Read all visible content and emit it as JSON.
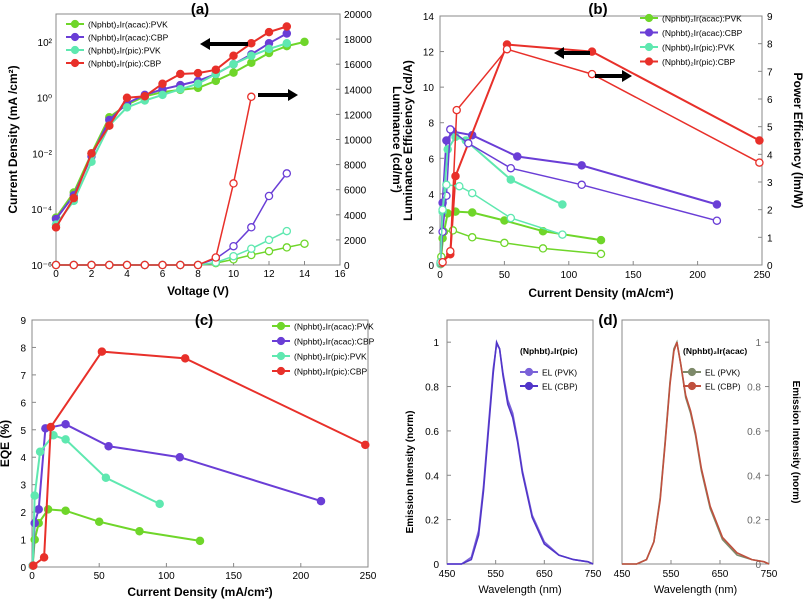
{
  "chart_data": [
    {
      "id": "a",
      "panel_label": "(a)",
      "type": "line",
      "xlabel": "Voltage (V)",
      "ylabel": "Current Density (mA /cm²)",
      "y2label": "Luminance (cd/m²)",
      "xlim": [
        0,
        16
      ],
      "ylim_log10": [
        -6,
        3
      ],
      "y2lim": [
        0,
        20000
      ],
      "x_ticks": [
        "0",
        "2",
        "4",
        "6",
        "8",
        "10",
        "12",
        "14",
        "16"
      ],
      "y_ticks": [
        "10⁻⁶",
        "10⁻⁴",
        "10⁻²",
        "10⁰",
        "10²"
      ],
      "y2_ticks": [
        "0",
        "2000",
        "4000",
        "6000",
        "8000",
        "10000",
        "12000",
        "14000",
        "16000",
        "18000",
        "20000"
      ],
      "legend": [
        "(Nphbt)₂Ir(acac):PVK",
        "(Nphbt)₂Ir(acac):CBP",
        "(Nphbt)₂Ir(pic):PVK",
        "(Nphbt)₂Ir(pic):CBP"
      ],
      "series_current_density_log10": [
        {
          "name": "(Nphbt)₂Ir(acac):PVK",
          "color": "#6fd62a",
          "x": [
            0,
            1,
            2,
            3,
            4,
            5,
            6,
            7,
            8,
            9,
            10,
            11,
            12,
            13,
            14
          ],
          "y": [
            -4.3,
            -3.4,
            -2.0,
            -0.7,
            -0.25,
            0.05,
            0.2,
            0.28,
            0.35,
            0.6,
            0.9,
            1.25,
            1.6,
            1.85,
            2.0
          ]
        },
        {
          "name": "(Nphbt)₂Ir(acac):CBP",
          "color": "#6a3ed6",
          "x": [
            0,
            1,
            2,
            3,
            4,
            5,
            6,
            7,
            8,
            9,
            10,
            11,
            12,
            13
          ],
          "y": [
            -4.35,
            -3.5,
            -2.1,
            -0.8,
            -0.2,
            0.1,
            0.3,
            0.45,
            0.6,
            0.85,
            1.2,
            1.55,
            1.95,
            2.3
          ]
        },
        {
          "name": "(Nphbt)₂Ir(pic):PVK",
          "color": "#5fe8b0",
          "x": [
            0,
            1,
            2,
            3,
            4,
            5,
            6,
            7,
            8,
            9,
            10,
            11,
            12,
            13
          ],
          "y": [
            -4.55,
            -3.7,
            -2.3,
            -1.0,
            -0.35,
            -0.1,
            0.1,
            0.3,
            0.5,
            0.85,
            1.2,
            1.5,
            1.75,
            1.95
          ]
        },
        {
          "name": "(Nphbt)₂Ir(pic):CBP",
          "color": "#e8302a",
          "x": [
            0,
            1,
            2,
            3,
            4,
            5,
            6,
            7,
            8,
            9,
            10,
            11,
            12,
            13
          ],
          "y": [
            -4.65,
            -3.6,
            -2.0,
            -1.0,
            0.0,
            0.05,
            0.5,
            0.85,
            0.88,
            1.0,
            1.5,
            1.95,
            2.35,
            2.55
          ]
        }
      ],
      "series_luminance": [
        {
          "name": "(Nphbt)₂Ir(acac):PVK",
          "color": "#6fd62a",
          "x": [
            0,
            1,
            2,
            3,
            4,
            5,
            6,
            7,
            8,
            9,
            10,
            11,
            12,
            13,
            14
          ],
          "y": [
            0,
            0,
            0,
            0,
            0,
            0,
            0,
            0,
            0,
            150,
            450,
            800,
            1100,
            1400,
            1700
          ]
        },
        {
          "name": "(Nphbt)₂Ir(acac):CBP",
          "color": "#6a3ed6",
          "x": [
            0,
            1,
            2,
            3,
            4,
            5,
            6,
            7,
            8,
            9,
            10,
            11,
            12,
            13
          ],
          "y": [
            0,
            0,
            0,
            0,
            0,
            0,
            0,
            0,
            0,
            500,
            1500,
            3000,
            5500,
            7300
          ]
        },
        {
          "name": "(Nphbt)₂Ir(pic):PVK",
          "color": "#5fe8b0",
          "x": [
            0,
            1,
            2,
            3,
            4,
            5,
            6,
            7,
            8,
            9,
            10,
            11,
            12,
            13
          ],
          "y": [
            0,
            0,
            0,
            0,
            0,
            0,
            0,
            0,
            0,
            200,
            700,
            1300,
            2000,
            2700
          ]
        },
        {
          "name": "(Nphbt)₂Ir(pic):CBP",
          "color": "#e8302a",
          "x": [
            0,
            1,
            2,
            3,
            4,
            5,
            6,
            7,
            8,
            9,
            10,
            11
          ],
          "y": [
            0,
            0,
            0,
            0,
            0,
            0,
            0,
            0,
            0,
            600,
            6500,
            13400
          ]
        }
      ]
    },
    {
      "id": "b",
      "panel_label": "(b)",
      "type": "line",
      "xlabel": "Current Density (mA/cm²)",
      "ylabel": "Luminance Efficiency (cd/A)",
      "y2label": "Power Efficiency (lm/W)",
      "xlim": [
        0,
        250
      ],
      "ylim": [
        0,
        14
      ],
      "y2lim": [
        0,
        9
      ],
      "x_ticks": [
        "0",
        "50",
        "100",
        "150",
        "200",
        "250"
      ],
      "y_ticks": [
        "0",
        "2",
        "4",
        "6",
        "8",
        "10",
        "12",
        "14"
      ],
      "y2_ticks": [
        "0",
        "1",
        "2",
        "3",
        "4",
        "5",
        "6",
        "7",
        "8",
        "9"
      ],
      "legend": [
        "(Nphbt)₂Ir(acac):PVK",
        "(Nphbt)₂Ir(acac):CBP",
        "(Nphbt)₂Ir(pic):PVK",
        "(Nphbt)₂Ir(pic):CBP"
      ],
      "series_luminance_efficiency": [
        {
          "name": "(Nphbt)₂Ir(acac):PVK",
          "color": "#6fd62a",
          "x": [
            0.5,
            2,
            6,
            12,
            25,
            50,
            80,
            125
          ],
          "y": [
            0.05,
            1.5,
            2.9,
            3.0,
            2.95,
            2.5,
            1.9,
            1.4
          ]
        },
        {
          "name": "(Nphbt)₂Ir(acac):CBP",
          "color": "#6a3ed6",
          "x": [
            0.5,
            2,
            5,
            10,
            25,
            60,
            110,
            215
          ],
          "y": [
            0.1,
            3.5,
            7.0,
            7.5,
            7.3,
            6.1,
            5.6,
            3.4
          ]
        },
        {
          "name": "(Nphbt)₂Ir(pic):PVK",
          "color": "#5fe8b0",
          "x": [
            0.5,
            2,
            6,
            12,
            20,
            55,
            95
          ],
          "y": [
            0.05,
            3.0,
            6.5,
            7.2,
            7.0,
            4.8,
            3.4
          ]
        },
        {
          "name": "(Nphbt)₂Ir(pic):CBP",
          "color": "#e8302a",
          "x": [
            1,
            8,
            12,
            52,
            118,
            248
          ],
          "y": [
            0.1,
            0.6,
            5.0,
            12.4,
            12.0,
            7.0
          ]
        }
      ],
      "series_power_efficiency": [
        {
          "name": "(Nphbt)₂Ir(acac):PVK",
          "color": "#6fd62a",
          "x": [
            1,
            3,
            10,
            25,
            50,
            80,
            125
          ],
          "y": [
            0.3,
            1.2,
            1.25,
            1.0,
            0.8,
            0.6,
            0.4
          ]
        },
        {
          "name": "(Nphbt)₂Ir(acac):CBP",
          "color": "#6a3ed6",
          "x": [
            0.5,
            2,
            5,
            8,
            22,
            55,
            110,
            215
          ],
          "y": [
            0.1,
            1.2,
            2.5,
            4.9,
            4.4,
            3.5,
            2.9,
            1.6
          ]
        },
        {
          "name": "(Nphbt)₂Ir(pic):PVK",
          "color": "#5fe8b0",
          "x": [
            0.5,
            2,
            5,
            15,
            25,
            55,
            95
          ],
          "y": [
            0.1,
            2.0,
            2.9,
            2.85,
            2.6,
            1.7,
            1.1
          ]
        },
        {
          "name": "(Nphbt)₂Ir(pic):CBP",
          "color": "#e8302a",
          "x": [
            2,
            8,
            13,
            52,
            118,
            248
          ],
          "y": [
            0.1,
            0.5,
            5.6,
            7.8,
            6.9,
            3.7
          ]
        }
      ]
    },
    {
      "id": "c",
      "panel_label": "(c)",
      "type": "line",
      "xlabel": "Current Density (mA/cm²)",
      "ylabel": "EQE (%)",
      "xlim": [
        0,
        250
      ],
      "ylim": [
        0,
        9
      ],
      "x_ticks": [
        "0",
        "50",
        "100",
        "150",
        "200",
        "250"
      ],
      "y_ticks": [
        "0",
        "1",
        "2",
        "3",
        "4",
        "5",
        "6",
        "7",
        "8",
        "9"
      ],
      "legend": [
        "(Nphbt)₂Ir(acac):PVK",
        "(Nphbt)₂Ir(acac):CBP",
        "(Nphbt)₂Ir(pic):PVK",
        "(Nphbt)₂Ir(pic):CBP"
      ],
      "series": [
        {
          "name": "(Nphbt)₂Ir(acac):PVK",
          "color": "#6fd62a",
          "x": [
            0.5,
            2,
            5,
            12,
            25,
            50,
            80,
            125
          ],
          "y": [
            0.05,
            1.0,
            1.6,
            2.1,
            2.05,
            1.65,
            1.3,
            0.95
          ]
        },
        {
          "name": "(Nphbt)₂Ir(acac):CBP",
          "color": "#6a3ed6",
          "x": [
            0.5,
            2,
            5,
            10,
            25,
            57,
            110,
            215
          ],
          "y": [
            0.05,
            1.6,
            2.1,
            5.05,
            5.2,
            4.4,
            4.0,
            2.4
          ]
        },
        {
          "name": "(Nphbt)₂Ir(pic):PVK",
          "color": "#5fe8b0",
          "x": [
            0.5,
            2,
            6,
            16,
            25,
            55,
            95
          ],
          "y": [
            0.05,
            2.6,
            4.2,
            4.8,
            4.65,
            3.25,
            2.3
          ]
        },
        {
          "name": "(Nphbt)₂Ir(pic):CBP",
          "color": "#e8302a",
          "x": [
            1,
            9,
            14,
            52,
            114,
            248
          ],
          "y": [
            0.05,
            0.35,
            5.1,
            7.85,
            7.6,
            4.45
          ]
        }
      ]
    },
    {
      "id": "d1",
      "panel_label": "(d)",
      "type": "line",
      "compound": "(Nphbt)₂Ir(pic)",
      "xlabel": "Wavelength (nm)",
      "ylabel": "Emission Intensity (norm)",
      "xlim": [
        450,
        750
      ],
      "ylim": [
        0,
        1.1
      ],
      "x_ticks": [
        "450",
        "550",
        "650",
        "750"
      ],
      "y_ticks": [
        "0",
        "0.2",
        "0.4",
        "0.6",
        "0.8",
        "1"
      ],
      "legend": [
        "EL (PVK)",
        "EL (CBP)"
      ],
      "series": [
        {
          "name": "EL (PVK)",
          "color": "#7a62d8",
          "x": [
            450,
            480,
            500,
            515,
            525,
            535,
            545,
            552,
            558,
            565,
            575,
            585,
            595,
            605,
            625,
            650,
            680,
            710,
            740,
            750
          ],
          "y": [
            0.0,
            0.0,
            0.03,
            0.15,
            0.35,
            0.62,
            0.88,
            0.99,
            0.97,
            0.86,
            0.74,
            0.68,
            0.56,
            0.42,
            0.22,
            0.1,
            0.04,
            0.02,
            0.01,
            0.0
          ]
        },
        {
          "name": "EL (CBP)",
          "color": "#5135c9",
          "x": [
            450,
            480,
            500,
            515,
            525,
            535,
            545,
            552,
            558,
            565,
            575,
            585,
            595,
            605,
            625,
            650,
            680,
            710,
            740,
            750
          ],
          "y": [
            0.0,
            0.0,
            0.02,
            0.13,
            0.33,
            0.6,
            0.86,
            1.0,
            0.97,
            0.85,
            0.72,
            0.66,
            0.55,
            0.41,
            0.21,
            0.09,
            0.04,
            0.02,
            0.01,
            0.0
          ]
        }
      ]
    },
    {
      "id": "d2",
      "type": "line",
      "compound": "(Nphbt)₂Ir(acac)",
      "xlabel": "Wavelength (nm)",
      "ylabel": "Emission Intensity (norm)",
      "xlim": [
        450,
        750
      ],
      "ylim": [
        0,
        1.1
      ],
      "x_ticks": [
        "450",
        "550",
        "650",
        "750"
      ],
      "y_ticks": [
        "0",
        "0.2",
        "0.4",
        "0.6",
        "0.8",
        "1"
      ],
      "legend": [
        "EL (PVK)",
        "EL (CBP)"
      ],
      "series": [
        {
          "name": "EL (PVK)",
          "color": "#7e8a6a",
          "x": [
            450,
            480,
            500,
            515,
            528,
            538,
            548,
            556,
            562,
            570,
            580,
            590,
            600,
            612,
            630,
            655,
            685,
            715,
            740,
            750
          ],
          "y": [
            0.0,
            0.0,
            0.02,
            0.1,
            0.3,
            0.55,
            0.82,
            0.97,
            1.0,
            0.9,
            0.75,
            0.68,
            0.58,
            0.42,
            0.25,
            0.11,
            0.04,
            0.02,
            0.01,
            0.0
          ]
        },
        {
          "name": "EL (CBP)",
          "color": "#c0503e",
          "x": [
            450,
            480,
            500,
            515,
            528,
            538,
            548,
            556,
            562,
            570,
            580,
            590,
            600,
            612,
            630,
            655,
            685,
            715,
            740,
            750
          ],
          "y": [
            0.0,
            0.0,
            0.02,
            0.1,
            0.29,
            0.54,
            0.81,
            0.96,
            1.0,
            0.9,
            0.76,
            0.69,
            0.59,
            0.43,
            0.26,
            0.12,
            0.05,
            0.02,
            0.01,
            0.0
          ]
        }
      ]
    }
  ]
}
